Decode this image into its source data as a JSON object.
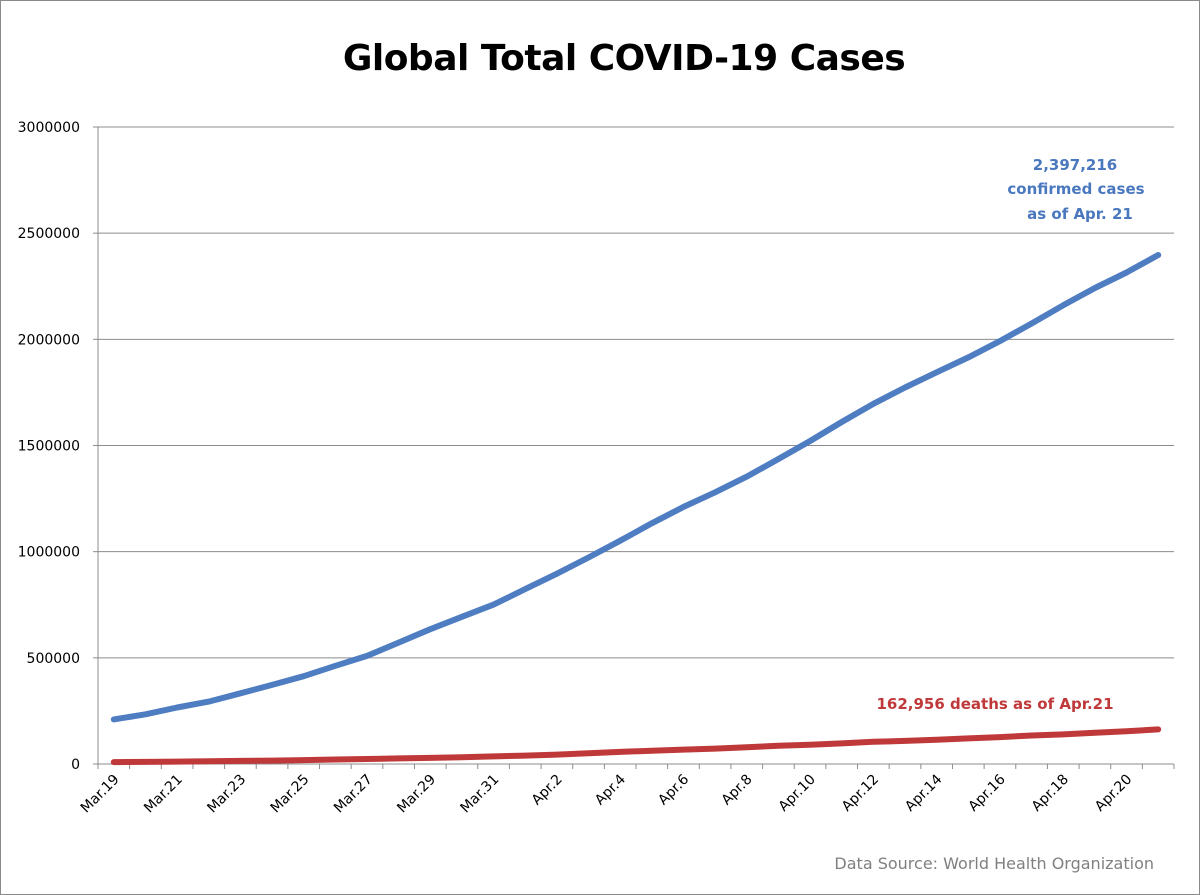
{
  "chart_data": {
    "type": "line",
    "title": "Global Total COVID-19 Cases",
    "xlabel": "",
    "ylabel": "",
    "ylim": [
      0,
      3000000
    ],
    "y_ticks": [
      "0",
      "500000",
      "1000000",
      "1500000",
      "2000000",
      "2500000",
      "3000000"
    ],
    "x_tick_labels": [
      "Mar.19",
      "Mar.21",
      "Mar.23",
      "Mar.25",
      "Mar.27",
      "Mar.29",
      "Mar.31",
      "Apr.2",
      "Apr.4",
      "Apr.6",
      "Apr.8",
      "Apr.10",
      "Apr.12",
      "Apr.14",
      "Apr.16",
      "Apr.18",
      "Apr.20"
    ],
    "categories": [
      "Mar.19",
      "Mar.20",
      "Mar.21",
      "Mar.22",
      "Mar.23",
      "Mar.24",
      "Mar.25",
      "Mar.26",
      "Mar.27",
      "Mar.28",
      "Mar.29",
      "Mar.30",
      "Mar.31",
      "Apr.1",
      "Apr.2",
      "Apr.3",
      "Apr.4",
      "Apr.5",
      "Apr.6",
      "Apr.7",
      "Apr.8",
      "Apr.9",
      "Apr.10",
      "Apr.11",
      "Apr.12",
      "Apr.13",
      "Apr.14",
      "Apr.15",
      "Apr.16",
      "Apr.17",
      "Apr.18",
      "Apr.19",
      "Apr.20",
      "Apr.21"
    ],
    "grid": "horizontal",
    "series": [
      {
        "color": "#4f7dc2",
        "values": [
          209839,
          234073,
          266073,
          294110,
          332930,
          372757,
          413467,
          462684,
          509164,
          571678,
          634835,
          693224,
          750890,
          823626,
          896450,
          972303,
          1051635,
          1133758,
          1210956,
          1279722,
          1353361,
          1436198,
          1521252,
          1610909,
          1696588,
          1773084,
          1844863,
          1914916,
          1991562,
          2074529,
          2160207,
          2241778,
          2314621,
          2397216
        ]
      },
      {
        "color": "#c0393a",
        "values": [
          8778,
          9840,
          11184,
          12783,
          14510,
          16231,
          18433,
          21031,
          23335,
          26494,
          28717,
          31347,
          35986,
          39422,
          44058,
          50321,
          56985,
          62784,
          67594,
          72614,
          79235,
          85711,
          90938,
          97039,
          104506,
          108770,
          114090,
          120779,
          126500,
          134354,
          139378,
          147027,
          154263,
          162956
        ]
      }
    ],
    "annotations": {
      "confirmed": [
        "2,397,216",
        "confirmed cases",
        "as of Apr. 21"
      ],
      "deaths": "162,956 deaths as of Apr.21"
    },
    "source": "Data Source: World Health Organization"
  }
}
